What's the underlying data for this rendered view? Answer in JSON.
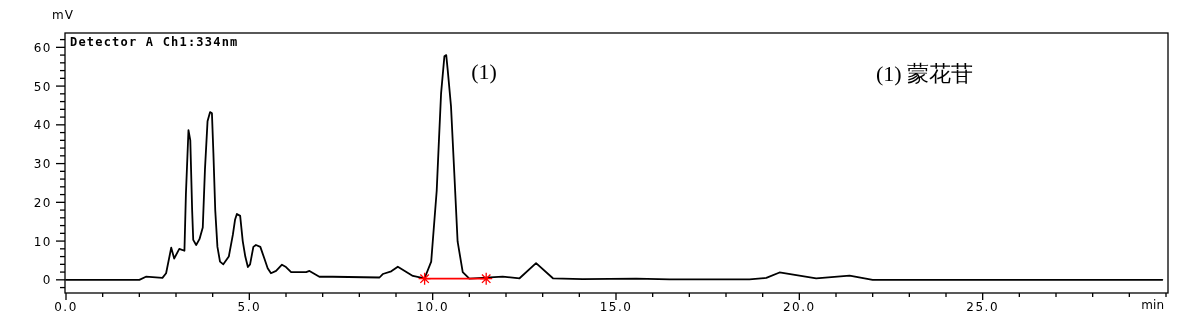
{
  "chart_data": {
    "type": "line",
    "title": "Detector A Ch1:334nm",
    "xlabel": "min",
    "ylabel": "mV",
    "xlim": [
      0,
      30
    ],
    "ylim": [
      -3.4,
      63.7
    ],
    "xticks": [
      {
        "value": 0,
        "label": "0.0"
      },
      {
        "value": 1,
        "label": null
      },
      {
        "value": 2,
        "label": null
      },
      {
        "value": 3,
        "label": null
      },
      {
        "value": 4,
        "label": null
      },
      {
        "value": 5,
        "label": "5.0"
      },
      {
        "value": 6,
        "label": null
      },
      {
        "value": 7,
        "label": null
      },
      {
        "value": 8,
        "label": null
      },
      {
        "value": 9,
        "label": null
      },
      {
        "value": 10,
        "label": "10.0"
      },
      {
        "value": 11,
        "label": null
      },
      {
        "value": 12,
        "label": null
      },
      {
        "value": 13,
        "label": null
      },
      {
        "value": 14,
        "label": null
      },
      {
        "value": 15,
        "label": "15.0"
      },
      {
        "value": 16,
        "label": null
      },
      {
        "value": 17,
        "label": null
      },
      {
        "value": 18,
        "label": null
      },
      {
        "value": 19,
        "label": null
      },
      {
        "value": 20,
        "label": "20.0"
      },
      {
        "value": 21,
        "label": null
      },
      {
        "value": 22,
        "label": null
      },
      {
        "value": 23,
        "label": null
      },
      {
        "value": 24,
        "label": null
      },
      {
        "value": 25,
        "label": "25.0"
      },
      {
        "value": 26,
        "label": null
      },
      {
        "value": 27,
        "label": null
      },
      {
        "value": 28,
        "label": null
      },
      {
        "value": 29,
        "label": null
      },
      {
        "value": 30,
        "label": null
      }
    ],
    "yticks": [
      {
        "value": -2,
        "label": null
      },
      0,
      {
        "value": 2,
        "label": null
      },
      {
        "value": 4,
        "label": null
      },
      {
        "value": 6,
        "label": null
      },
      {
        "value": 8,
        "label": null
      },
      10,
      {
        "value": 12,
        "label": null
      },
      {
        "value": 14,
        "label": null
      },
      {
        "value": 16,
        "label": null
      },
      {
        "value": 18,
        "label": null
      },
      20,
      {
        "value": 22,
        "label": null
      },
      {
        "value": 24,
        "label": null
      },
      {
        "value": 26,
        "label": null
      },
      {
        "value": 28,
        "label": null
      },
      30,
      {
        "value": 32,
        "label": null
      },
      {
        "value": 34,
        "label": null
      },
      {
        "value": 36,
        "label": null
      },
      {
        "value": 38,
        "label": null
      },
      40,
      {
        "value": 42,
        "label": null
      },
      {
        "value": 44,
        "label": null
      },
      {
        "value": 46,
        "label": null
      },
      {
        "value": 48,
        "label": null
      },
      50,
      {
        "value": 52,
        "label": null
      },
      {
        "value": 54,
        "label": null
      },
      {
        "value": 56,
        "label": null
      },
      {
        "value": 58,
        "label": null
      },
      60,
      {
        "value": 62,
        "label": null
      }
    ],
    "series": [
      {
        "color": "#000000",
        "x": [
          0,
          2.0,
          2.18,
          2.63,
          2.73,
          2.87,
          2.95,
          3.09,
          3.23,
          3.27,
          3.34,
          3.39,
          3.44,
          3.47,
          3.55,
          3.64,
          3.73,
          3.79,
          3.86,
          3.93,
          3.98,
          4.02,
          4.07,
          4.13,
          4.2,
          4.29,
          4.44,
          4.55,
          4.61,
          4.66,
          4.75,
          4.82,
          4.89,
          4.96,
          5.02,
          5.11,
          5.18,
          5.3,
          5.41,
          5.5,
          5.59,
          5.73,
          5.89,
          6.0,
          6.14,
          6.55,
          6.64,
          6.91,
          7.27,
          8.55,
          8.64,
          8.87,
          9.05,
          9.46,
          9.78,
          9.96,
          10.11,
          10.17,
          10.23,
          10.32,
          10.37,
          10.41,
          10.5,
          10.59,
          10.68,
          10.82,
          11.0,
          11.91,
          12.37,
          12.82,
          13.28,
          14.09,
          15.55,
          16.46,
          18.64,
          19.1,
          19.46,
          20.46,
          21.37,
          22.0,
          29.9
        ],
        "values": [
          0,
          0,
          0.8,
          0.5,
          1.7,
          8.3,
          5.5,
          8,
          7.5,
          22,
          38.6,
          36,
          18,
          10.3,
          9,
          10.5,
          13.5,
          28.5,
          40.9,
          43.3,
          43,
          32.7,
          18,
          8.5,
          4.7,
          4,
          6,
          11.6,
          15.5,
          17,
          16.5,
          10,
          6,
          3.3,
          4,
          8.5,
          9,
          8.5,
          5.5,
          3,
          1.7,
          2.3,
          3.9,
          3.3,
          2,
          2,
          2.3,
          0.8,
          0.8,
          0.6,
          1.5,
          2.2,
          3.4,
          1,
          0.4,
          4.7,
          23,
          35.8,
          48.2,
          57.7,
          58,
          54.2,
          44.8,
          27.5,
          9.9,
          2,
          0.3,
          0.8,
          0.4,
          4.3,
          0.4,
          0.2,
          0.3,
          0.1,
          0.1,
          0.5,
          1.9,
          0.4,
          1.1,
          0,
          0
        ]
      },
      {
        "type": "line",
        "color": "#ff0000",
        "marker": "cross",
        "x": [
          9.78,
          11.46
        ],
        "values": [
          0.3,
          0.3
        ]
      }
    ],
    "annotations": [
      {
        "text": "(1)",
        "x": 10.37,
        "y": 58
      },
      "(1) 蒙花苷"
    ]
  }
}
